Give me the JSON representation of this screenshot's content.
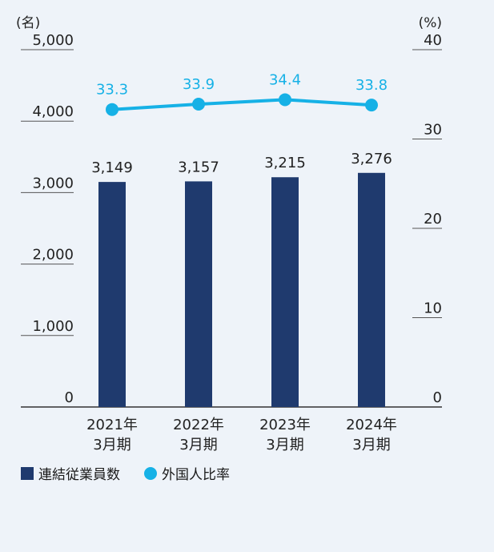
{
  "chart_data": {
    "type": "bar",
    "categories": [
      [
        "2021年",
        "3月期"
      ],
      [
        "2022年",
        "3月期"
      ],
      [
        "2023年",
        "3月期"
      ],
      [
        "2024年",
        "3月期"
      ]
    ],
    "left_axis": {
      "unit": "(名)",
      "ticks": [
        "0",
        "1,000",
        "2,000",
        "3,000",
        "4,000",
        "5,000"
      ],
      "ylim": [
        0,
        5000
      ]
    },
    "right_axis": {
      "unit": "(%)",
      "ticks": [
        "0",
        "10",
        "20",
        "30",
        "40"
      ],
      "ylim": [
        0,
        40
      ]
    },
    "series": [
      {
        "name": "連結従業員数",
        "type": "bar",
        "axis": "left",
        "values": [
          3149,
          3157,
          3215,
          3276
        ],
        "labels": [
          "3,149",
          "3,157",
          "3,215",
          "3,276"
        ]
      },
      {
        "name": "外国人比率",
        "type": "line",
        "axis": "right",
        "values": [
          33.3,
          33.9,
          34.4,
          33.8
        ],
        "labels": [
          "33.3",
          "33.9",
          "34.4",
          "33.8"
        ]
      }
    ],
    "colors": {
      "bar": "#1f3a6e",
      "line": "#16b1e6",
      "axis": "#333333"
    },
    "grid": false,
    "legend_position": "bottom-left"
  },
  "legend": {
    "bar_label": "連結従業員数",
    "line_label": "外国人比率"
  }
}
